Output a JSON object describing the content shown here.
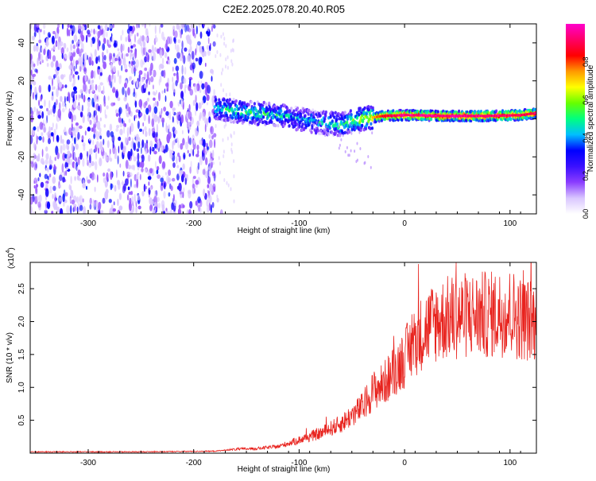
{
  "title": "C2E2.2025.078.20.40.R05",
  "top_panel": {
    "xlabel": "Height of straight line (km)",
    "ylabel": "Frequency (Hz)",
    "colorbar_label": "Normalized spectral amplitude",
    "x_ticks": [
      "-300",
      "-200",
      "-100",
      "0",
      "100"
    ],
    "y_ticks": [
      "40",
      "20",
      "0",
      "-20",
      "-40"
    ],
    "cb_ticks": [
      "0.0",
      "0.2",
      "0.4",
      "0.6",
      "0.8"
    ]
  },
  "bottom_panel": {
    "xlabel": "Height of straight line (km)",
    "ylabel": "SNR (10 * v/v)",
    "multiplier": "(x10",
    "multiplier_exp": "4",
    "multiplier_close": ")",
    "x_ticks": [
      "-300",
      "-200",
      "-100",
      "0",
      "100"
    ],
    "y_ticks": [
      "2.5",
      "2.0",
      "1.5",
      "1.0",
      "0.5"
    ]
  },
  "colors": {
    "noise": "#7a2ee0",
    "snr_line": "#e8231e",
    "colormap": [
      "#ffffff",
      "#d9c6ff",
      "#8a3cff",
      "#3a10ff",
      "#0000ff",
      "#00bfff",
      "#00ff80",
      "#66ff00",
      "#ffff00",
      "#ff9900",
      "#ff0000",
      "#ff0066",
      "#ff00cc"
    ]
  },
  "chart_data": [
    {
      "type": "heatmap",
      "title": "C2E2.2025.078.20.40.R05",
      "xlabel": "Height of straight line (km)",
      "ylabel": "Frequency (Hz)",
      "xlim": [
        -355,
        125
      ],
      "ylim": [
        -50,
        50
      ],
      "colorbar": {
        "label": "Normalized spectral amplitude",
        "range": [
          0,
          1
        ]
      },
      "noise_region_km": [
        -355,
        -180
      ],
      "noise_amplitude_range": [
        0.05,
        0.25
      ],
      "signal_ridge": [
        {
          "x": -180,
          "freq": 6,
          "amp": 0.45
        },
        {
          "x": -160,
          "freq": 4,
          "amp": 0.5
        },
        {
          "x": -140,
          "freq": 3,
          "amp": 0.5
        },
        {
          "x": -120,
          "freq": 2,
          "amp": 0.45
        },
        {
          "x": -100,
          "freq": 0,
          "amp": 0.4
        },
        {
          "x": -80,
          "freq": -2,
          "amp": 0.45
        },
        {
          "x": -60,
          "freq": -3,
          "amp": 0.5
        },
        {
          "x": -40,
          "freq": 0,
          "amp": 0.6
        },
        {
          "x": -20,
          "freq": 1.5,
          "amp": 0.85
        },
        {
          "x": 0,
          "freq": 2,
          "amp": 0.95
        },
        {
          "x": 40,
          "freq": 1.5,
          "amp": 0.95
        },
        {
          "x": 80,
          "freq": 1.5,
          "amp": 0.95
        },
        {
          "x": 110,
          "freq": 2,
          "amp": 0.9
        },
        {
          "x": 125,
          "freq": 3,
          "amp": 0.9
        }
      ]
    },
    {
      "type": "line",
      "title": "",
      "xlabel": "Height of straight line (km)",
      "ylabel": "SNR (10 * v/v)",
      "xlim": [
        -355,
        125
      ],
      "ylim": [
        0,
        2.9
      ],
      "y_scale_note": "x10^4",
      "series": [
        {
          "name": "SNR",
          "x": [
            -355,
            -250,
            -180,
            -160,
            -140,
            -120,
            -100,
            -80,
            -60,
            -40,
            -30,
            -20,
            -10,
            0,
            10,
            20,
            30,
            40,
            60,
            80,
            100,
            110,
            125
          ],
          "y": [
            0.02,
            0.02,
            0.03,
            0.06,
            0.07,
            0.1,
            0.2,
            0.3,
            0.45,
            0.7,
            0.95,
            1.05,
            1.25,
            1.45,
            1.7,
            1.9,
            2.0,
            2.05,
            2.1,
            2.1,
            2.15,
            2.05,
            2.0
          ]
        }
      ]
    }
  ]
}
